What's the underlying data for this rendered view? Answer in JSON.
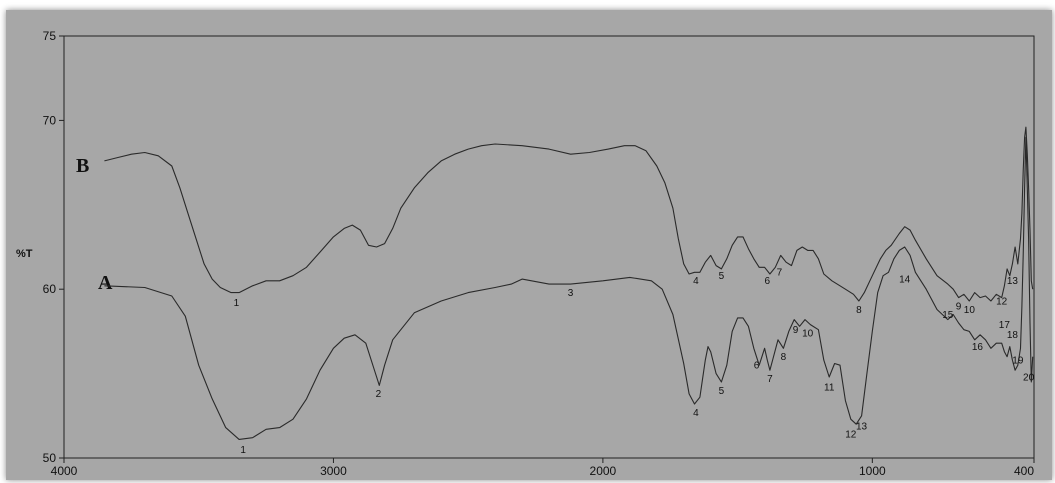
{
  "chart_data": {
    "type": "line",
    "title": "",
    "xlabel": "",
    "ylabel": "%T",
    "xlim": [
      4000,
      400
    ],
    "ylim": [
      50,
      75
    ],
    "x_ticks": [
      "4000",
      "3000",
      "2000",
      "1000",
      "400"
    ],
    "y_ticks": [
      "75",
      "70",
      "60",
      "50"
    ],
    "grid": false,
    "series": [
      {
        "name": "A",
        "color": "#2a2a2a",
        "points": [
          [
            3850,
            60.2
          ],
          [
            3700,
            60.1
          ],
          [
            3600,
            59.6
          ],
          [
            3550,
            58.4
          ],
          [
            3500,
            55.5
          ],
          [
            3450,
            53.5
          ],
          [
            3400,
            51.8
          ],
          [
            3350,
            51.1
          ],
          [
            3300,
            51.2
          ],
          [
            3250,
            51.7
          ],
          [
            3200,
            51.8
          ],
          [
            3150,
            52.3
          ],
          [
            3100,
            53.5
          ],
          [
            3050,
            55.2
          ],
          [
            3000,
            56.5
          ],
          [
            2960,
            57.1
          ],
          [
            2920,
            57.3
          ],
          [
            2880,
            56.8
          ],
          [
            2850,
            55.3
          ],
          [
            2830,
            54.3
          ],
          [
            2810,
            55.5
          ],
          [
            2780,
            57.0
          ],
          [
            2700,
            58.6
          ],
          [
            2600,
            59.3
          ],
          [
            2500,
            59.8
          ],
          [
            2400,
            60.1
          ],
          [
            2340,
            60.3
          ],
          [
            2300,
            60.6
          ],
          [
            2200,
            60.3
          ],
          [
            2120,
            60.3
          ],
          [
            2000,
            60.5
          ],
          [
            1900,
            60.7
          ],
          [
            1820,
            60.5
          ],
          [
            1780,
            60.0
          ],
          [
            1740,
            58.5
          ],
          [
            1700,
            55.6
          ],
          [
            1680,
            53.8
          ],
          [
            1660,
            53.2
          ],
          [
            1640,
            53.6
          ],
          [
            1620,
            55.8
          ],
          [
            1610,
            56.6
          ],
          [
            1600,
            56.3
          ],
          [
            1580,
            55.0
          ],
          [
            1560,
            54.5
          ],
          [
            1540,
            55.5
          ],
          [
            1520,
            57.5
          ],
          [
            1500,
            58.3
          ],
          [
            1480,
            58.3
          ],
          [
            1460,
            57.8
          ],
          [
            1440,
            56.5
          ],
          [
            1420,
            55.5
          ],
          [
            1400,
            56.5
          ],
          [
            1390,
            55.8
          ],
          [
            1380,
            55.2
          ],
          [
            1370,
            55.8
          ],
          [
            1350,
            57.0
          ],
          [
            1330,
            56.5
          ],
          [
            1310,
            57.5
          ],
          [
            1290,
            58.2
          ],
          [
            1270,
            57.8
          ],
          [
            1250,
            58.2
          ],
          [
            1230,
            57.9
          ],
          [
            1200,
            57.6
          ],
          [
            1180,
            55.8
          ],
          [
            1160,
            54.8
          ],
          [
            1140,
            55.6
          ],
          [
            1120,
            55.5
          ],
          [
            1100,
            53.4
          ],
          [
            1080,
            52.3
          ],
          [
            1060,
            52.0
          ],
          [
            1040,
            52.5
          ],
          [
            1020,
            55.0
          ],
          [
            1000,
            57.5
          ],
          [
            980,
            59.8
          ],
          [
            960,
            60.8
          ],
          [
            940,
            61.0
          ],
          [
            920,
            61.8
          ],
          [
            900,
            62.3
          ],
          [
            880,
            62.5
          ],
          [
            860,
            62.0
          ],
          [
            840,
            61.0
          ],
          [
            800,
            60.0
          ],
          [
            760,
            58.8
          ],
          [
            720,
            58.2
          ],
          [
            700,
            58.5
          ],
          [
            680,
            58.0
          ],
          [
            660,
            57.6
          ],
          [
            640,
            57.5
          ],
          [
            620,
            57.0
          ],
          [
            600,
            57.3
          ],
          [
            580,
            57.0
          ],
          [
            560,
            56.5
          ],
          [
            540,
            56.8
          ],
          [
            520,
            56.8
          ],
          [
            510,
            56.3
          ],
          [
            500,
            56.0
          ],
          [
            490,
            56.6
          ],
          [
            480,
            55.8
          ],
          [
            470,
            55.2
          ],
          [
            460,
            55.5
          ],
          [
            450,
            56.5
          ],
          [
            445,
            59.0
          ],
          [
            440,
            62.0
          ],
          [
            435,
            66.0
          ],
          [
            430,
            69.0
          ],
          [
            425,
            66.0
          ],
          [
            420,
            63.0
          ],
          [
            415,
            58.0
          ],
          [
            410,
            54.5
          ],
          [
            405,
            56.0
          ]
        ]
      },
      {
        "name": "B",
        "color": "#2a2a2a",
        "points": [
          [
            3850,
            67.6
          ],
          [
            3800,
            67.8
          ],
          [
            3750,
            68.0
          ],
          [
            3700,
            68.1
          ],
          [
            3650,
            67.9
          ],
          [
            3600,
            67.3
          ],
          [
            3570,
            66.0
          ],
          [
            3540,
            64.5
          ],
          [
            3510,
            63.0
          ],
          [
            3480,
            61.5
          ],
          [
            3450,
            60.6
          ],
          [
            3420,
            60.1
          ],
          [
            3380,
            59.8
          ],
          [
            3350,
            59.8
          ],
          [
            3300,
            60.2
          ],
          [
            3250,
            60.5
          ],
          [
            3200,
            60.5
          ],
          [
            3150,
            60.8
          ],
          [
            3100,
            61.3
          ],
          [
            3050,
            62.2
          ],
          [
            3000,
            63.1
          ],
          [
            2960,
            63.6
          ],
          [
            2930,
            63.8
          ],
          [
            2900,
            63.5
          ],
          [
            2870,
            62.6
          ],
          [
            2840,
            62.5
          ],
          [
            2810,
            62.7
          ],
          [
            2780,
            63.6
          ],
          [
            2750,
            64.8
          ],
          [
            2700,
            66.0
          ],
          [
            2650,
            66.9
          ],
          [
            2600,
            67.6
          ],
          [
            2550,
            68.0
          ],
          [
            2500,
            68.3
          ],
          [
            2450,
            68.5
          ],
          [
            2400,
            68.6
          ],
          [
            2300,
            68.5
          ],
          [
            2200,
            68.3
          ],
          [
            2120,
            68.0
          ],
          [
            2050,
            68.1
          ],
          [
            1980,
            68.3
          ],
          [
            1920,
            68.5
          ],
          [
            1880,
            68.5
          ],
          [
            1840,
            68.2
          ],
          [
            1800,
            67.3
          ],
          [
            1770,
            66.3
          ],
          [
            1740,
            64.8
          ],
          [
            1720,
            63.0
          ],
          [
            1700,
            61.5
          ],
          [
            1680,
            60.9
          ],
          [
            1660,
            61.0
          ],
          [
            1640,
            61.0
          ],
          [
            1620,
            61.6
          ],
          [
            1600,
            62.0
          ],
          [
            1580,
            61.4
          ],
          [
            1560,
            61.2
          ],
          [
            1540,
            61.8
          ],
          [
            1520,
            62.6
          ],
          [
            1500,
            63.1
          ],
          [
            1480,
            63.1
          ],
          [
            1460,
            62.4
          ],
          [
            1440,
            61.8
          ],
          [
            1420,
            61.3
          ],
          [
            1400,
            61.3
          ],
          [
            1380,
            60.9
          ],
          [
            1360,
            61.3
          ],
          [
            1340,
            62.0
          ],
          [
            1320,
            61.6
          ],
          [
            1300,
            61.4
          ],
          [
            1280,
            62.3
          ],
          [
            1260,
            62.5
          ],
          [
            1240,
            62.3
          ],
          [
            1220,
            62.3
          ],
          [
            1200,
            61.8
          ],
          [
            1180,
            60.9
          ],
          [
            1150,
            60.5
          ],
          [
            1120,
            60.2
          ],
          [
            1100,
            60.0
          ],
          [
            1070,
            59.7
          ],
          [
            1050,
            59.3
          ],
          [
            1030,
            59.8
          ],
          [
            1000,
            60.8
          ],
          [
            970,
            61.8
          ],
          [
            950,
            62.3
          ],
          [
            930,
            62.6
          ],
          [
            900,
            63.3
          ],
          [
            880,
            63.7
          ],
          [
            860,
            63.5
          ],
          [
            840,
            62.9
          ],
          [
            800,
            61.8
          ],
          [
            760,
            60.8
          ],
          [
            720,
            60.3
          ],
          [
            700,
            60.0
          ],
          [
            680,
            59.5
          ],
          [
            660,
            59.7
          ],
          [
            640,
            59.3
          ],
          [
            620,
            59.8
          ],
          [
            600,
            59.5
          ],
          [
            580,
            59.6
          ],
          [
            560,
            59.3
          ],
          [
            540,
            59.7
          ],
          [
            520,
            59.5
          ],
          [
            510,
            60.2
          ],
          [
            500,
            61.2
          ],
          [
            490,
            60.8
          ],
          [
            480,
            61.5
          ],
          [
            470,
            62.5
          ],
          [
            460,
            61.5
          ],
          [
            450,
            63.0
          ],
          [
            445,
            64.5
          ],
          [
            440,
            67.0
          ],
          [
            435,
            69.0
          ],
          [
            430,
            69.6
          ],
          [
            425,
            68.0
          ],
          [
            420,
            66.0
          ],
          [
            415,
            63.5
          ],
          [
            410,
            60.5
          ],
          [
            405,
            60.0
          ]
        ]
      }
    ],
    "peak_labels_A": [
      {
        "text": "1",
        "x": 3335,
        "y": 50.3
      },
      {
        "text": "2",
        "x": 2833,
        "y": 53.6
      },
      {
        "text": "3",
        "x": 2120,
        "y": 59.6
      },
      {
        "text": "4",
        "x": 1655,
        "y": 52.5
      },
      {
        "text": "5",
        "x": 1560,
        "y": 53.8
      },
      {
        "text": "6",
        "x": 1430,
        "y": 55.3
      },
      {
        "text": "7",
        "x": 1380,
        "y": 54.5
      },
      {
        "text": "8",
        "x": 1330,
        "y": 55.8
      },
      {
        "text": "9",
        "x": 1285,
        "y": 57.4
      },
      {
        "text": "10",
        "x": 1240,
        "y": 57.2
      },
      {
        "text": "11",
        "x": 1160,
        "y": 54.0
      },
      {
        "text": "12",
        "x": 1080,
        "y": 51.2
      },
      {
        "text": "13",
        "x": 1040,
        "y": 51.7
      },
      {
        "text": "14",
        "x": 880,
        "y": 60.4
      },
      {
        "text": "15",
        "x": 720,
        "y": 58.3
      },
      {
        "text": "16",
        "x": 610,
        "y": 56.4
      },
      {
        "text": "17",
        "x": 510,
        "y": 57.7
      },
      {
        "text": "18",
        "x": 480,
        "y": 57.1
      },
      {
        "text": "19",
        "x": 460,
        "y": 55.6
      },
      {
        "text": "20",
        "x": 420,
        "y": 54.6
      }
    ],
    "peak_labels_B": [
      {
        "text": "1",
        "x": 3360,
        "y": 59.0
      },
      {
        "text": "4",
        "x": 1655,
        "y": 60.3
      },
      {
        "text": "5",
        "x": 1560,
        "y": 60.6
      },
      {
        "text": "6",
        "x": 1390,
        "y": 60.3
      },
      {
        "text": "7",
        "x": 1345,
        "y": 60.8
      },
      {
        "text": "8",
        "x": 1050,
        "y": 58.6
      },
      {
        "text": "9",
        "x": 680,
        "y": 58.8
      },
      {
        "text": "10",
        "x": 640,
        "y": 58.6
      },
      {
        "text": "12",
        "x": 520,
        "y": 59.1
      },
      {
        "text": "13",
        "x": 480,
        "y": 60.3
      }
    ]
  },
  "series_labels": {
    "a": "A",
    "b": "B"
  }
}
